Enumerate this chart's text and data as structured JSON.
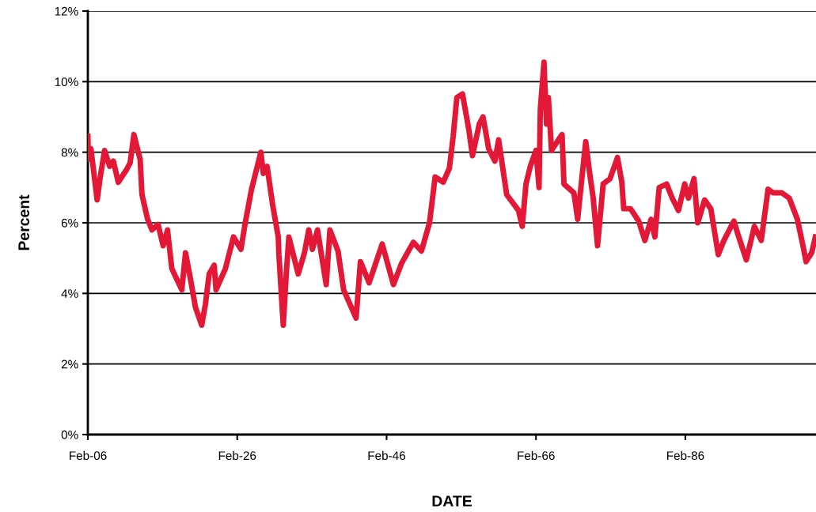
{
  "chart_data": {
    "type": "line",
    "xlabel": "DATE",
    "ylabel": "Percent",
    "x": [
      "1906-02",
      "1906-03",
      "1906-07",
      "1907-05",
      "1907-10",
      "1908-05",
      "1909-01",
      "1909-07",
      "1910-03",
      "1911-04",
      "1911-10",
      "1912-04",
      "1913-02",
      "1913-05",
      "1914-02",
      "1914-09",
      "1915-07",
      "1916-03",
      "1916-10",
      "1917-05",
      "1918-09",
      "1919-03",
      "1919-10",
      "1920-07",
      "1921-05",
      "1921-11",
      "1922-05",
      "1923-01",
      "1923-04",
      "1924-07",
      "1925-08",
      "1926-08",
      "1927-03",
      "1928-01",
      "1929-04",
      "1929-08",
      "1930-02",
      "1930-11",
      "1931-08",
      "1931-09",
      "1932-04",
      "1932-09",
      "1933-01",
      "1934-04",
      "1935-02",
      "1935-09",
      "1936-03",
      "1936-11",
      "1938-01",
      "1938-07",
      "1939-08",
      "1940-05",
      "1942-01",
      "1942-08",
      "1943-10",
      "1945-07",
      "1947-01",
      "1948-02",
      "1949-09",
      "1950-10",
      "1951-11",
      "1952-08",
      "1953-09",
      "1954-07",
      "1955-01",
      "1955-07",
      "1956-04",
      "1957-02",
      "1957-08",
      "1958-07",
      "1959-01",
      "1959-10",
      "1960-08",
      "1961-02",
      "1962-03",
      "1963-10",
      "1964-04",
      "1964-10",
      "1965-05",
      "1966-02",
      "1966-07",
      "1966-09",
      "1967-03",
      "1967-07",
      "1967-10",
      "1968-03",
      "1969-02",
      "1969-08",
      "1969-11",
      "1971-03",
      "1971-09",
      "1972-04",
      "1972-10",
      "1973-04",
      "1973-10",
      "1974-05",
      "1975-02",
      "1976-01",
      "1977-01",
      "1977-08",
      "1977-11",
      "1978-10",
      "1979-11",
      "1980-09",
      "1981-07",
      "1982-01",
      "1982-08",
      "1983-08",
      "1984-05",
      "1985-03",
      "1986-01",
      "1986-07",
      "1987-04",
      "1987-10",
      "1988-09",
      "1989-07",
      "1990-07",
      "1991-04",
      "1992-08",
      "1993-03",
      "1994-04",
      "1995-05",
      "1996-04",
      "1997-03",
      "1997-11",
      "1999-01",
      "2000-01",
      "2001-02",
      "2001-11",
      "2002-04",
      "2003-01",
      "2003-07"
    ],
    "series": [
      {
        "color": "#e31837",
        "values": [
          8.45,
          7.8,
          8.1,
          6.65,
          7.3,
          8.05,
          7.6,
          7.75,
          7.15,
          7.5,
          7.7,
          8.5,
          7.8,
          6.8,
          6.1,
          5.8,
          5.95,
          5.35,
          5.8,
          4.7,
          4.1,
          5.15,
          4.5,
          3.6,
          3.1,
          3.7,
          4.55,
          4.8,
          4.1,
          4.7,
          5.6,
          5.25,
          6.0,
          6.95,
          8.0,
          7.4,
          7.6,
          6.5,
          5.6,
          5.1,
          3.1,
          4.6,
          5.6,
          4.55,
          5.15,
          5.8,
          5.25,
          5.8,
          4.25,
          5.8,
          5.2,
          4.1,
          3.3,
          4.9,
          4.3,
          5.4,
          4.25,
          4.85,
          5.45,
          5.2,
          6.0,
          7.3,
          7.15,
          7.55,
          8.45,
          9.55,
          9.65,
          8.65,
          7.9,
          8.8,
          9.0,
          8.1,
          7.75,
          8.35,
          6.8,
          6.35,
          5.9,
          7.1,
          7.6,
          8.05,
          7.0,
          9.2,
          10.55,
          8.8,
          9.55,
          8.05,
          8.35,
          8.5,
          7.1,
          6.85,
          6.1,
          7.3,
          8.3,
          7.45,
          6.7,
          5.35,
          7.1,
          7.25,
          7.85,
          7.15,
          6.4,
          6.4,
          6.05,
          5.5,
          6.1,
          5.6,
          7.0,
          7.1,
          6.7,
          6.35,
          7.1,
          6.7,
          7.25,
          6.0,
          6.65,
          6.4,
          5.1,
          5.5,
          6.05,
          5.65,
          4.95,
          5.9,
          5.5,
          6.95,
          6.85,
          6.85,
          6.7,
          6.1,
          5.35,
          4.9,
          5.15,
          5.6
        ]
      }
    ],
    "xlim": [
      "1906-02",
      "2003-08"
    ],
    "xticks": [
      {
        "value": "1906-02",
        "label": "Feb-06"
      },
      {
        "value": "1926-02",
        "label": "Feb-26"
      },
      {
        "value": "1946-02",
        "label": "Feb-46"
      },
      {
        "value": "1966-02",
        "label": "Feb-66"
      },
      {
        "value": "1986-02",
        "label": "Feb-86"
      }
    ],
    "ylim": [
      0,
      12
    ],
    "yticks": [
      {
        "value": 0,
        "label": "0%"
      },
      {
        "value": 2,
        "label": "2%"
      },
      {
        "value": 4,
        "label": "4%"
      },
      {
        "value": 6,
        "label": "6%"
      },
      {
        "value": 8,
        "label": "8%"
      },
      {
        "value": 10,
        "label": "10%"
      },
      {
        "value": 12,
        "label": "12%"
      }
    ],
    "grid": "y",
    "marker": "none",
    "line_style": "solid",
    "legend": false
  }
}
